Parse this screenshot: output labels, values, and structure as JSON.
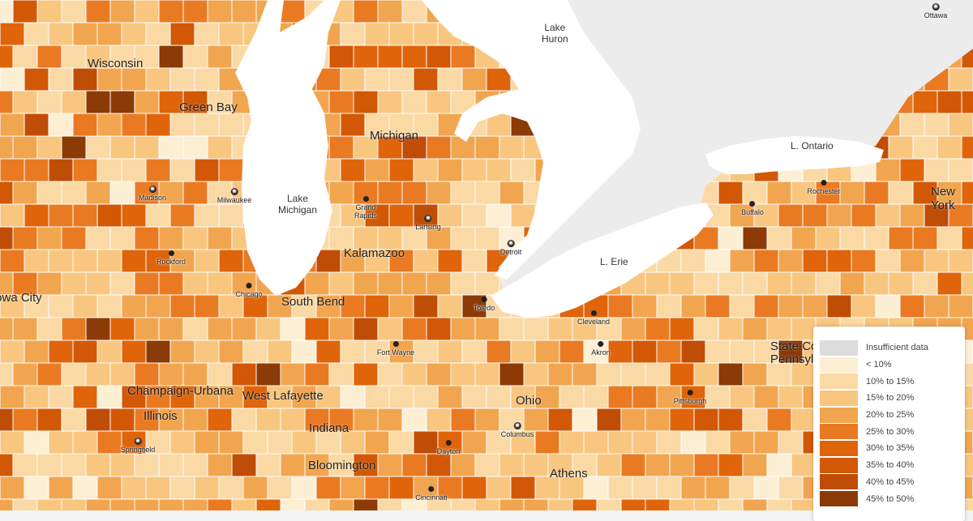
{
  "legend": {
    "items": [
      {
        "label": "Insufficient data",
        "color": "#dcdcdc"
      },
      {
        "label": "< 10%",
        "color": "#fdefd4"
      },
      {
        "label": "10% to 15%",
        "color": "#fbd9a5"
      },
      {
        "label": "15% to 20%",
        "color": "#f9c67f"
      },
      {
        "label": "20% to 25%",
        "color": "#f2a54f"
      },
      {
        "label": "25% to 30%",
        "color": "#ea7a22"
      },
      {
        "label": "30% to 35%",
        "color": "#e0640a"
      },
      {
        "label": "35% to 40%",
        "color": "#d25805"
      },
      {
        "label": "40% to 45%",
        "color": "#c04d05"
      },
      {
        "label": "45% to 50%",
        "color": "#8c3a06"
      }
    ]
  },
  "colors": {
    "water": "#ffffff",
    "canada": "#ececec",
    "county_border": "#ffffff"
  },
  "regions": {
    "wisconsin": "Wisconsin",
    "green_bay": "Green Bay",
    "michigan": "Michigan",
    "kalamazoo": "Kalamazoo",
    "south_bend": "South Bend",
    "illinois": "Illinois",
    "champaign": "Champaign-Urbana",
    "west_lafayette": "West Lafayette",
    "indiana": "Indiana",
    "bloomington": "Bloomington",
    "ohio": "Ohio",
    "athens": "Athens",
    "new_york": "New\nYork",
    "state_college": "State College\nPennsylvania",
    "iowa_city": "Iowa City"
  },
  "lakes": {
    "huron": "Lake\nHuron",
    "michigan": "Lake\nMichigan",
    "ontario": "L. Ontario",
    "erie": "L. Erie"
  },
  "cities": {
    "madison": "Madison",
    "milwaukee": "Milwaukee",
    "rockford": "Rockford",
    "chicago": "Chicago",
    "grand_rapids": "Grand\nRapids",
    "lansing": "Lansing",
    "detroit": "Detroit",
    "toledo": "Toledo",
    "fort_wayne": "Fort Wayne",
    "cleveland": "Cleveland",
    "akron": "Akron",
    "columbus": "Columbus",
    "dayton": "Dayton",
    "cincinnati": "Cincinnati",
    "springfield": "Springfield",
    "pittsburgh": "Pittsburgh",
    "buffalo": "Buffalo",
    "rochester": "Rochester",
    "ottawa": "Ottawa"
  }
}
